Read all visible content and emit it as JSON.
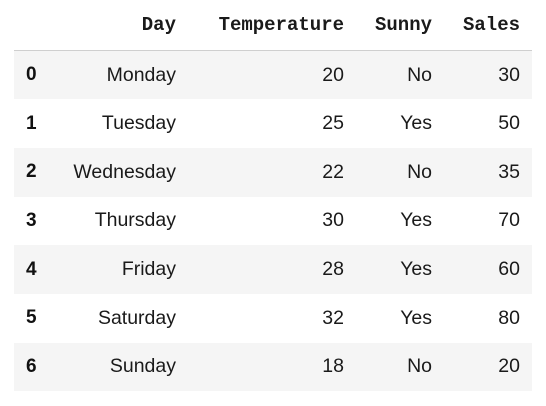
{
  "dataframe": {
    "columns": [
      "Day",
      "Temperature",
      "Sunny",
      "Sales"
    ],
    "rows": [
      {
        "index": "0",
        "Day": "Monday",
        "Temperature": "20",
        "Sunny": "No",
        "Sales": "30"
      },
      {
        "index": "1",
        "Day": "Tuesday",
        "Temperature": "25",
        "Sunny": "Yes",
        "Sales": "50"
      },
      {
        "index": "2",
        "Day": "Wednesday",
        "Temperature": "22",
        "Sunny": "No",
        "Sales": "35"
      },
      {
        "index": "3",
        "Day": "Thursday",
        "Temperature": "30",
        "Sunny": "Yes",
        "Sales": "70"
      },
      {
        "index": "4",
        "Day": "Friday",
        "Temperature": "28",
        "Sunny": "Yes",
        "Sales": "60"
      },
      {
        "index": "5",
        "Day": "Saturday",
        "Temperature": "32",
        "Sunny": "Yes",
        "Sales": "80"
      },
      {
        "index": "6",
        "Day": "Sunday",
        "Temperature": "18",
        "Sunny": "No",
        "Sales": "20"
      }
    ]
  },
  "colors": {
    "stripe": "#f5f5f5",
    "text": "#1a1a1a",
    "header_rule": "#cfcfcf"
  }
}
